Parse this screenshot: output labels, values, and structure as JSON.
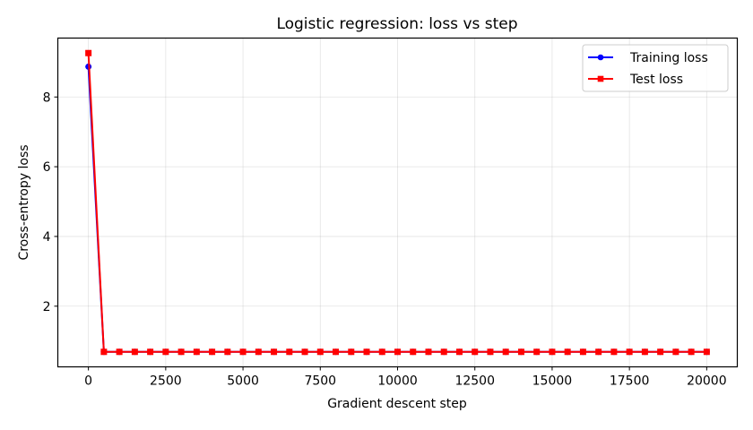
{
  "chart_data": {
    "type": "line",
    "title": "Logistic regression: loss vs step",
    "xlabel": "Gradient descent step",
    "ylabel": "Cross-entropy loss",
    "xlim": [
      -990,
      20990
    ],
    "ylim": [
      0.26,
      9.69
    ],
    "xticks": [
      0,
      2500,
      5000,
      7500,
      10000,
      12500,
      15000,
      17500,
      20000
    ],
    "xtick_labels": [
      "0",
      "2500",
      "5000",
      "7500",
      "10000",
      "12500",
      "15000",
      "17500",
      "20000"
    ],
    "yticks": [
      2,
      4,
      6,
      8
    ],
    "ytick_labels": [
      "2",
      "4",
      "6",
      "8"
    ],
    "grid": true,
    "legend_position": "upper right",
    "x": [
      0,
      500,
      1000,
      1500,
      2000,
      2500,
      3000,
      3500,
      4000,
      4500,
      5000,
      5500,
      6000,
      6500,
      7000,
      7500,
      8000,
      8500,
      9000,
      9500,
      10000,
      10500,
      11000,
      11500,
      12000,
      12500,
      13000,
      13500,
      14000,
      14500,
      15000,
      15500,
      16000,
      16500,
      17000,
      17500,
      18000,
      18500,
      19000,
      19500,
      20000
    ],
    "series": [
      {
        "name": "Training loss",
        "color": "#0000ff",
        "marker": "circle",
        "values": [
          8.87,
          0.69,
          0.69,
          0.69,
          0.69,
          0.69,
          0.69,
          0.69,
          0.69,
          0.69,
          0.69,
          0.69,
          0.69,
          0.69,
          0.69,
          0.69,
          0.69,
          0.69,
          0.69,
          0.69,
          0.69,
          0.69,
          0.69,
          0.69,
          0.69,
          0.69,
          0.69,
          0.69,
          0.69,
          0.69,
          0.69,
          0.69,
          0.69,
          0.69,
          0.69,
          0.69,
          0.69,
          0.69,
          0.69,
          0.69,
          0.69
        ]
      },
      {
        "name": "Test loss",
        "color": "#ff0000",
        "marker": "square",
        "values": [
          9.26,
          0.69,
          0.69,
          0.69,
          0.69,
          0.69,
          0.69,
          0.69,
          0.69,
          0.69,
          0.69,
          0.69,
          0.69,
          0.69,
          0.69,
          0.69,
          0.69,
          0.69,
          0.69,
          0.69,
          0.69,
          0.69,
          0.69,
          0.69,
          0.69,
          0.69,
          0.69,
          0.69,
          0.69,
          0.69,
          0.69,
          0.69,
          0.69,
          0.69,
          0.69,
          0.69,
          0.69,
          0.69,
          0.69,
          0.69,
          0.69
        ]
      }
    ]
  }
}
